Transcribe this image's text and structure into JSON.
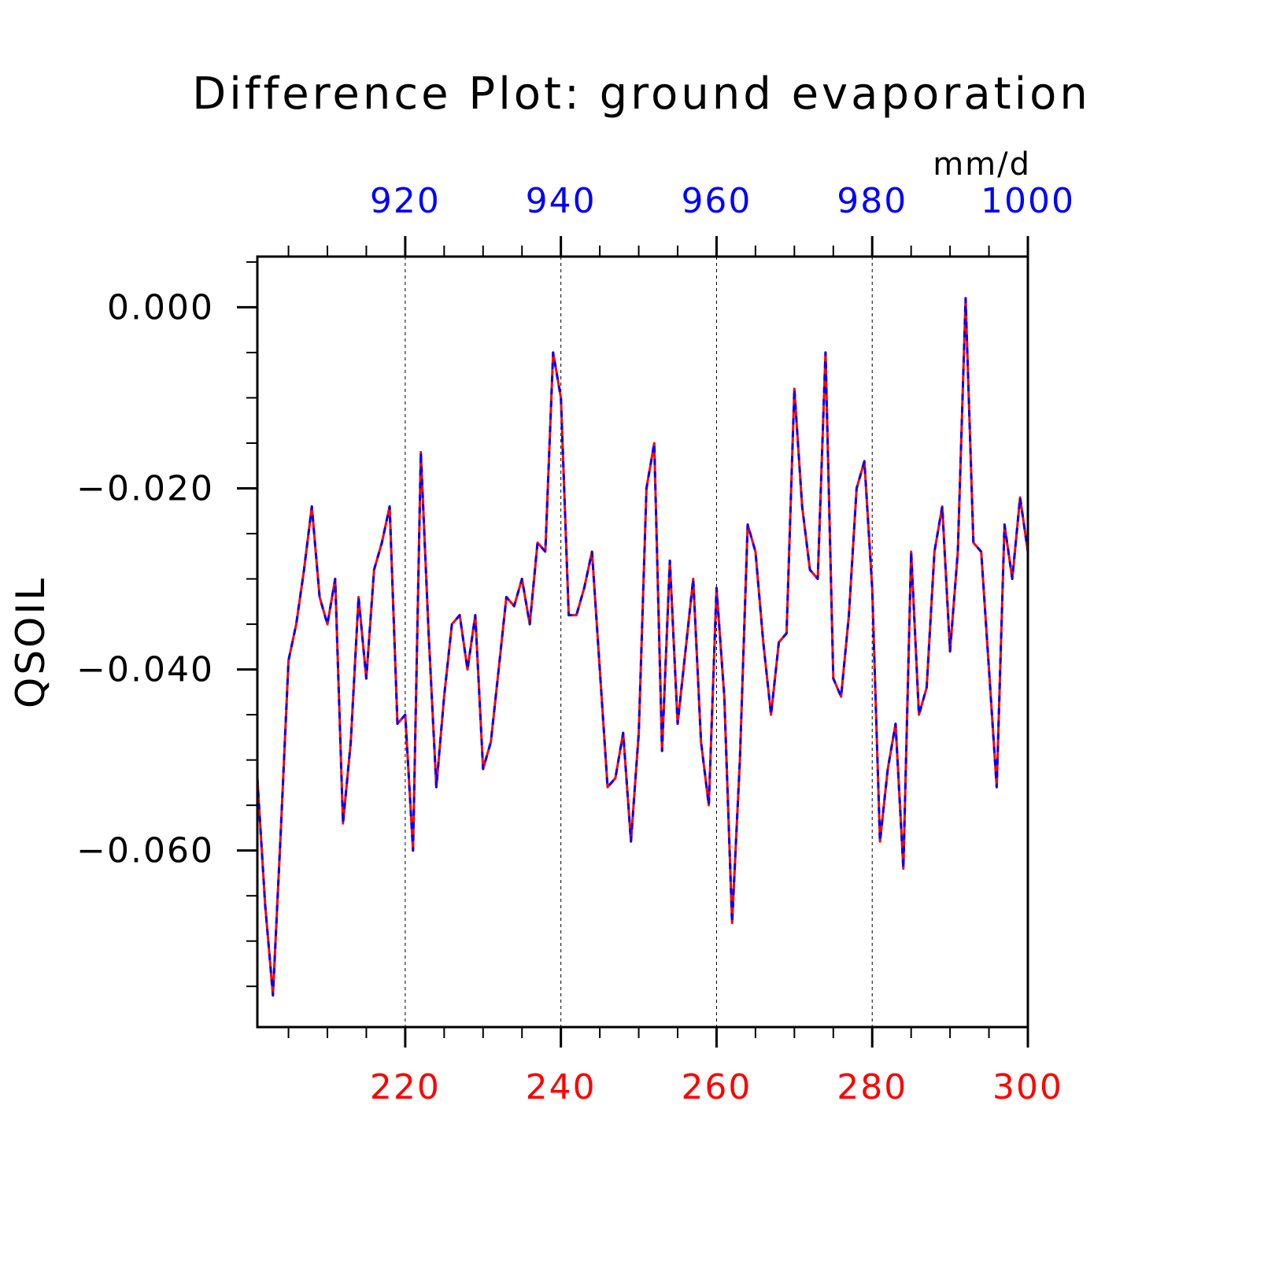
{
  "colors": {
    "bottom_axis": "#ff0000",
    "top_axis": "#0000ff",
    "series_1": "#ff0000",
    "series_2": "#0000ff",
    "frame": "#000000",
    "grid": "#000000"
  },
  "chart_data": {
    "type": "line",
    "title": "Difference Plot: ground evaporation",
    "units": "mm/d",
    "ylabel": "QSOIL",
    "xlabel": "",
    "xlim": [
      201,
      300
    ],
    "x_top_lim": [
      901,
      1000
    ],
    "ylim": [
      -0.0795,
      0.0056
    ],
    "yticks": [
      0.0,
      -0.02,
      -0.04,
      -0.06
    ],
    "ytick_labels": [
      "0.000",
      "−0.020",
      "−0.040",
      "−0.060"
    ],
    "xticks_bottom": [
      220,
      240,
      260,
      280,
      300
    ],
    "xtick_labels_bottom": [
      "220",
      "240",
      "260",
      "280",
      "300"
    ],
    "xticks_top": [
      920,
      940,
      960,
      980,
      1000
    ],
    "xtick_labels_top": [
      "920",
      "940",
      "960",
      "980",
      "1000"
    ],
    "grid": "vertical dashed lines at major x ticks",
    "series": [
      {
        "axis": "bottom",
        "color": "#ff0000",
        "style": "solid",
        "x": [
          201,
          202,
          203,
          204,
          205,
          206,
          207,
          208,
          209,
          210,
          211,
          212,
          213,
          214,
          215,
          216,
          217,
          218,
          219,
          220,
          221,
          222,
          223,
          224,
          225,
          226,
          227,
          228,
          229,
          230,
          231,
          232,
          233,
          234,
          235,
          236,
          237,
          238,
          239,
          240,
          241,
          242,
          243,
          244,
          245,
          246,
          247,
          248,
          249,
          250,
          251,
          252,
          253,
          254,
          255,
          256,
          257,
          258,
          259,
          260,
          261,
          262,
          263,
          264,
          265,
          266,
          267,
          268,
          269,
          270,
          271,
          272,
          273,
          274,
          275,
          276,
          277,
          278,
          279,
          280,
          281,
          282,
          283,
          284,
          285,
          286,
          287,
          288,
          289,
          290,
          291,
          292,
          293,
          294,
          295,
          296,
          297,
          298,
          299,
          300
        ],
        "values": [
          -0.052,
          -0.066,
          -0.076,
          -0.058,
          -0.039,
          -0.035,
          -0.029,
          -0.022,
          -0.032,
          -0.035,
          -0.03,
          -0.057,
          -0.048,
          -0.032,
          -0.041,
          -0.029,
          -0.026,
          -0.022,
          -0.046,
          -0.045,
          -0.06,
          -0.016,
          -0.036,
          -0.053,
          -0.043,
          -0.035,
          -0.034,
          -0.04,
          -0.034,
          -0.051,
          -0.048,
          -0.04,
          -0.032,
          -0.033,
          -0.03,
          -0.035,
          -0.026,
          -0.027,
          -0.005,
          -0.01,
          -0.034,
          -0.034,
          -0.031,
          -0.027,
          -0.04,
          -0.053,
          -0.052,
          -0.047,
          -0.059,
          -0.047,
          -0.02,
          -0.015,
          -0.049,
          -0.028,
          -0.046,
          -0.038,
          -0.03,
          -0.048,
          -0.055,
          -0.031,
          -0.043,
          -0.068,
          -0.05,
          -0.024,
          -0.027,
          -0.037,
          -0.045,
          -0.037,
          -0.036,
          -0.009,
          -0.022,
          -0.029,
          -0.03,
          -0.005,
          -0.041,
          -0.043,
          -0.034,
          -0.02,
          -0.017,
          -0.031,
          -0.059,
          -0.051,
          -0.046,
          -0.062,
          -0.027,
          -0.045,
          -0.042,
          -0.027,
          -0.022,
          -0.038,
          -0.027,
          0.001,
          -0.026,
          -0.027,
          -0.04,
          -0.053,
          -0.024,
          -0.03,
          -0.021,
          -0.027
        ]
      },
      {
        "axis": "top",
        "color": "#0000ff",
        "style": "dashed",
        "x": [
          901,
          902,
          903,
          904,
          905,
          906,
          907,
          908,
          909,
          910,
          911,
          912,
          913,
          914,
          915,
          916,
          917,
          918,
          919,
          920,
          921,
          922,
          923,
          924,
          925,
          926,
          927,
          928,
          929,
          930,
          931,
          932,
          933,
          934,
          935,
          936,
          937,
          938,
          939,
          940,
          941,
          942,
          943,
          944,
          945,
          946,
          947,
          948,
          949,
          950,
          951,
          952,
          953,
          954,
          955,
          956,
          957,
          958,
          959,
          960,
          961,
          962,
          963,
          964,
          965,
          966,
          967,
          968,
          969,
          970,
          971,
          972,
          973,
          974,
          975,
          976,
          977,
          978,
          979,
          980,
          981,
          982,
          983,
          984,
          985,
          986,
          987,
          988,
          989,
          990,
          991,
          992,
          993,
          994,
          995,
          996,
          997,
          998,
          999,
          1000
        ],
        "values": [
          -0.052,
          -0.066,
          -0.076,
          -0.058,
          -0.039,
          -0.035,
          -0.029,
          -0.022,
          -0.032,
          -0.035,
          -0.03,
          -0.057,
          -0.048,
          -0.032,
          -0.041,
          -0.029,
          -0.026,
          -0.022,
          -0.046,
          -0.045,
          -0.06,
          -0.016,
          -0.036,
          -0.053,
          -0.043,
          -0.035,
          -0.034,
          -0.04,
          -0.034,
          -0.051,
          -0.048,
          -0.04,
          -0.032,
          -0.033,
          -0.03,
          -0.035,
          -0.026,
          -0.027,
          -0.005,
          -0.01,
          -0.034,
          -0.034,
          -0.031,
          -0.027,
          -0.04,
          -0.053,
          -0.052,
          -0.047,
          -0.059,
          -0.047,
          -0.02,
          -0.015,
          -0.049,
          -0.028,
          -0.046,
          -0.038,
          -0.03,
          -0.048,
          -0.055,
          -0.031,
          -0.043,
          -0.068,
          -0.05,
          -0.024,
          -0.027,
          -0.037,
          -0.045,
          -0.037,
          -0.036,
          -0.009,
          -0.022,
          -0.029,
          -0.03,
          -0.005,
          -0.041,
          -0.043,
          -0.034,
          -0.02,
          -0.017,
          -0.031,
          -0.059,
          -0.051,
          -0.046,
          -0.062,
          -0.027,
          -0.045,
          -0.042,
          -0.027,
          -0.022,
          -0.038,
          -0.027,
          0.001,
          -0.026,
          -0.027,
          -0.04,
          -0.053,
          -0.024,
          -0.03,
          -0.021,
          -0.027
        ]
      }
    ]
  }
}
